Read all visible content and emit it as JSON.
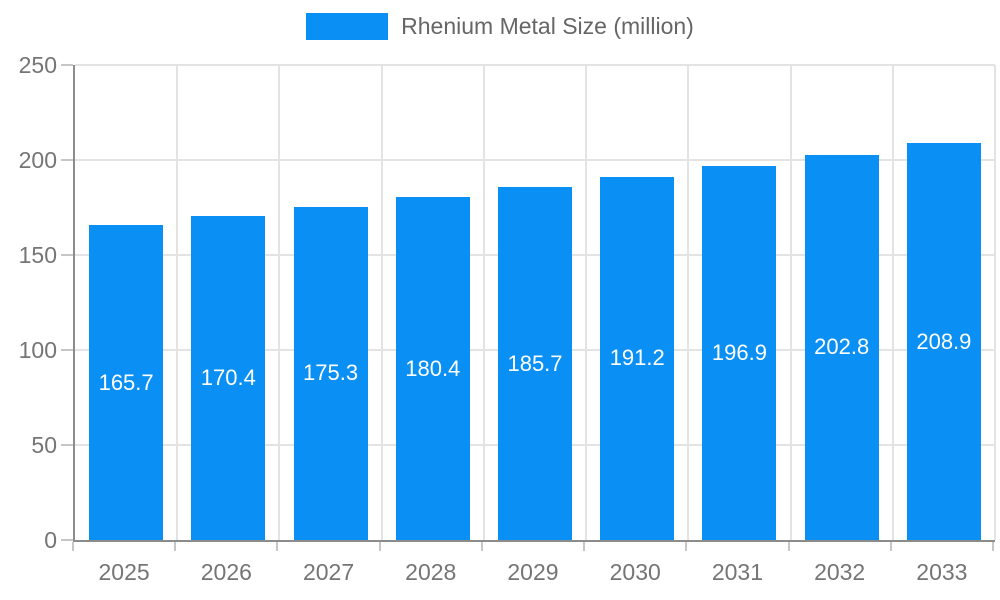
{
  "chart_data": {
    "type": "bar",
    "title": "",
    "categories": [
      "2025",
      "2026",
      "2027",
      "2028",
      "2029",
      "2030",
      "2031",
      "2032",
      "2033"
    ],
    "series": [
      {
        "name": "Rhenium Metal Size (million)",
        "values": [
          165.7,
          170.4,
          175.3,
          180.4,
          185.7,
          191.2,
          196.9,
          202.8,
          208.9
        ]
      }
    ],
    "value_labels": [
      "165.7",
      "170.4",
      "175.3",
      "180.4",
      "185.7",
      "191.2",
      "196.9",
      "202.8",
      "208.9"
    ],
    "xlabel": "",
    "ylabel": "",
    "ylim": [
      0,
      250
    ],
    "yticks": [
      0,
      50,
      100,
      150,
      200,
      250
    ],
    "grid": true,
    "legend_position": "top",
    "colors": {
      "bar": "#0a90f4",
      "value_label": "#ffffff",
      "gridline": "#e3e3e3",
      "tick": "#c6c6c6",
      "axis_line": "#8c8c8c",
      "axis_label": "#757575",
      "legend_text": "#666666",
      "background": "#ffffff"
    }
  }
}
